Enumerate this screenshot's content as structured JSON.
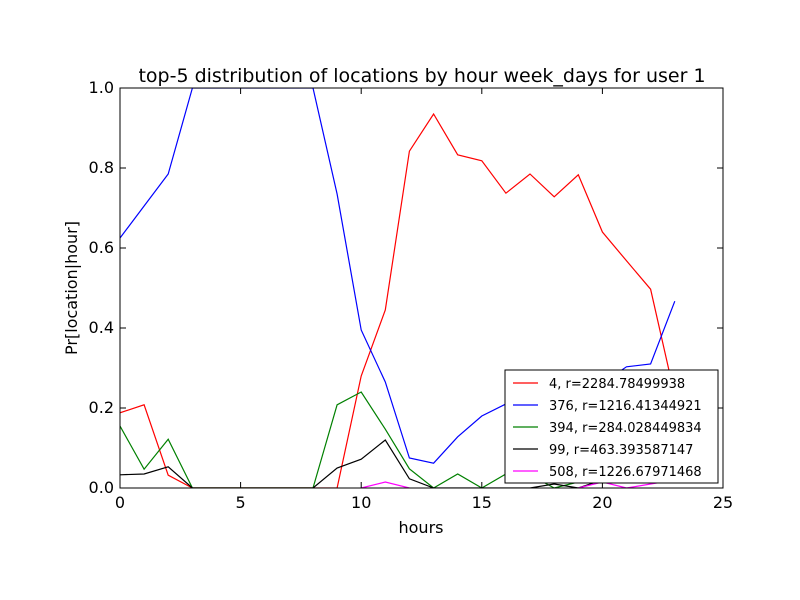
{
  "chart_data": {
    "type": "line",
    "title": "top-5 distribution of locations by hour week_days for user 1",
    "xlabel": "hours",
    "ylabel": "Pr[location|hour]",
    "xlim": [
      0,
      25
    ],
    "ylim": [
      0,
      1.0
    ],
    "xticks": [
      0,
      5,
      10,
      15,
      20,
      25
    ],
    "xtick_labels": [
      "0",
      "5",
      "10",
      "15",
      "20",
      "25"
    ],
    "yticks": [
      0,
      0.2,
      0.4,
      0.6,
      0.8,
      1.0
    ],
    "ytick_labels": [
      "0.0",
      "0.2",
      "0.4",
      "0.6",
      "0.8",
      "1.0"
    ],
    "grid": false,
    "legend_position": "bottom-right",
    "x": [
      0,
      1,
      2,
      3,
      4,
      5,
      6,
      7,
      8,
      9,
      10,
      11,
      12,
      13,
      14,
      15,
      16,
      17,
      18,
      19,
      20,
      21,
      22,
      23
    ],
    "series": [
      {
        "name": "4, r=2284.78499938",
        "color": "#ff0000",
        "values": [
          0.188,
          0.208,
          0.032,
          0.0,
          0.0,
          0.0,
          0.0,
          0.0,
          0.0,
          0.0,
          0.28,
          0.445,
          0.842,
          0.935,
          0.833,
          0.818,
          0.737,
          0.785,
          0.728,
          0.783,
          0.64,
          0.568,
          0.497,
          0.23
        ]
      },
      {
        "name": "376, r=1216.41344921",
        "color": "#0000ff",
        "values": [
          0.625,
          0.705,
          0.785,
          1.0,
          1.0,
          1.0,
          1.0,
          1.0,
          1.0,
          0.735,
          0.395,
          0.265,
          0.075,
          0.062,
          0.128,
          0.18,
          0.21,
          0.225,
          0.235,
          0.245,
          0.262,
          0.303,
          0.31,
          0.467
        ]
      },
      {
        "name": "394, r=284.028449834",
        "color": "#008000",
        "values": [
          0.155,
          0.047,
          0.122,
          0.0,
          0.0,
          0.0,
          0.0,
          0.0,
          0.0,
          0.208,
          0.24,
          0.147,
          0.048,
          0.0,
          0.035,
          0.0,
          0.035,
          0.033,
          0.0,
          0.015,
          0.017,
          0.015,
          0.02,
          0.025
        ]
      },
      {
        "name": "99, r=463.393587147",
        "color": "#000000",
        "values": [
          0.033,
          0.035,
          0.053,
          0.0,
          0.0,
          0.0,
          0.0,
          0.0,
          0.0,
          0.05,
          0.072,
          0.12,
          0.023,
          0.0,
          0.0,
          0.0,
          0.0,
          0.0,
          0.01,
          0.0,
          0.02,
          0.02,
          0.02,
          0.02
        ]
      },
      {
        "name": "508, r=1226.67971468",
        "color": "#ff00ff",
        "values": [
          null,
          null,
          null,
          null,
          null,
          null,
          null,
          null,
          null,
          null,
          0.0,
          0.015,
          0.0,
          null,
          null,
          null,
          null,
          null,
          null,
          0.0,
          0.015,
          0.0,
          0.01,
          0.02
        ]
      }
    ]
  }
}
